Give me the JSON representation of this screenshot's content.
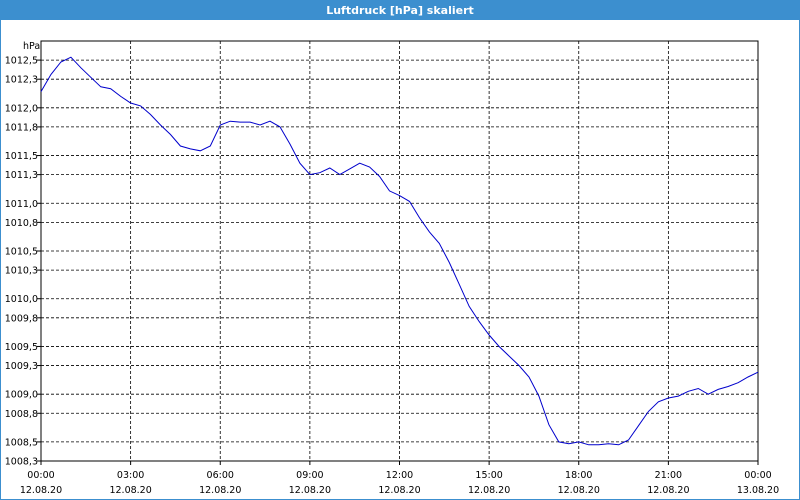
{
  "window": {
    "title": "Luftdruck [hPa] skaliert",
    "title_bar_color": "#3c8fcf"
  },
  "chart_data": {
    "type": "line",
    "title": "Luftdruck [hPa] skaliert",
    "unit_label": "hPa",
    "ylim": [
      1008.3,
      1012.7
    ],
    "xlim": [
      "12.08.20 00:00",
      "13.08.20 00:00"
    ],
    "grid": true,
    "y_tick_labels": [
      "1008,3",
      "1008,5",
      "1008,8",
      "1009,0",
      "1009,3",
      "1009,5",
      "1009,8",
      "1010,0",
      "1010,3",
      "1010,5",
      "1010,8",
      "1011,0",
      "1011,3",
      "1011,5",
      "1011,8",
      "1012,0",
      "1012,3",
      "1012,5"
    ],
    "x_tick_labels": [
      {
        "time": "00:00",
        "date": "12.08.20"
      },
      {
        "time": "03:00",
        "date": "12.08.20"
      },
      {
        "time": "06:00",
        "date": "12.08.20"
      },
      {
        "time": "09:00",
        "date": "12.08.20"
      },
      {
        "time": "12:00",
        "date": "12.08.20"
      },
      {
        "time": "15:00",
        "date": "12.08.20"
      },
      {
        "time": "18:00",
        "date": "12.08.20"
      },
      {
        "time": "21:00",
        "date": "12.08.20"
      },
      {
        "time": "00:00",
        "date": "13.08.20"
      }
    ],
    "series": [
      {
        "color": "#0000cc",
        "x": [
          "00:00",
          "00:20",
          "00:40",
          "01:00",
          "01:20",
          "01:40",
          "02:00",
          "02:20",
          "02:40",
          "03:00",
          "03:20",
          "03:40",
          "04:00",
          "04:20",
          "04:40",
          "05:00",
          "05:20",
          "05:40",
          "06:00",
          "06:20",
          "06:40",
          "07:00",
          "07:20",
          "07:40",
          "08:00",
          "08:20",
          "08:40",
          "09:00",
          "09:20",
          "09:40",
          "10:00",
          "10:20",
          "10:40",
          "11:00",
          "11:20",
          "11:40",
          "12:00",
          "12:20",
          "12:40",
          "13:00",
          "13:20",
          "13:40",
          "14:00",
          "14:20",
          "14:40",
          "15:00",
          "15:20",
          "15:40",
          "16:00",
          "16:20",
          "16:40",
          "17:00",
          "17:20",
          "17:40",
          "18:00",
          "18:20",
          "18:40",
          "19:00",
          "19:20",
          "19:40",
          "20:00",
          "20:20",
          "20:40",
          "21:00",
          "21:20",
          "21:40",
          "22:00",
          "22:20",
          "22:40",
          "23:00",
          "23:20",
          "23:40",
          "24:00"
        ],
        "values": [
          1012.17,
          1012.35,
          1012.48,
          1012.53,
          1012.42,
          1012.32,
          1012.22,
          1012.2,
          1012.12,
          1012.05,
          1012.02,
          1011.93,
          1011.82,
          1011.72,
          1011.6,
          1011.57,
          1011.55,
          1011.6,
          1011.82,
          1011.86,
          1011.85,
          1011.85,
          1011.82,
          1011.86,
          1011.8,
          1011.62,
          1011.42,
          1011.3,
          1011.32,
          1011.37,
          1011.3,
          1011.36,
          1011.42,
          1011.38,
          1011.28,
          1011.13,
          1011.08,
          1011.02,
          1010.85,
          1010.7,
          1010.58,
          1010.38,
          1010.15,
          1009.92,
          1009.76,
          1009.62,
          1009.5,
          1009.4,
          1009.3,
          1009.18,
          1008.98,
          1008.68,
          1008.5,
          1008.48,
          1008.5,
          1008.47,
          1008.47,
          1008.48,
          1008.47,
          1008.52,
          1008.67,
          1008.82,
          1008.92,
          1008.96,
          1008.98,
          1009.03,
          1009.06,
          1009.0,
          1009.05,
          1009.08,
          1009.12,
          1009.18,
          1009.23
        ]
      }
    ]
  }
}
